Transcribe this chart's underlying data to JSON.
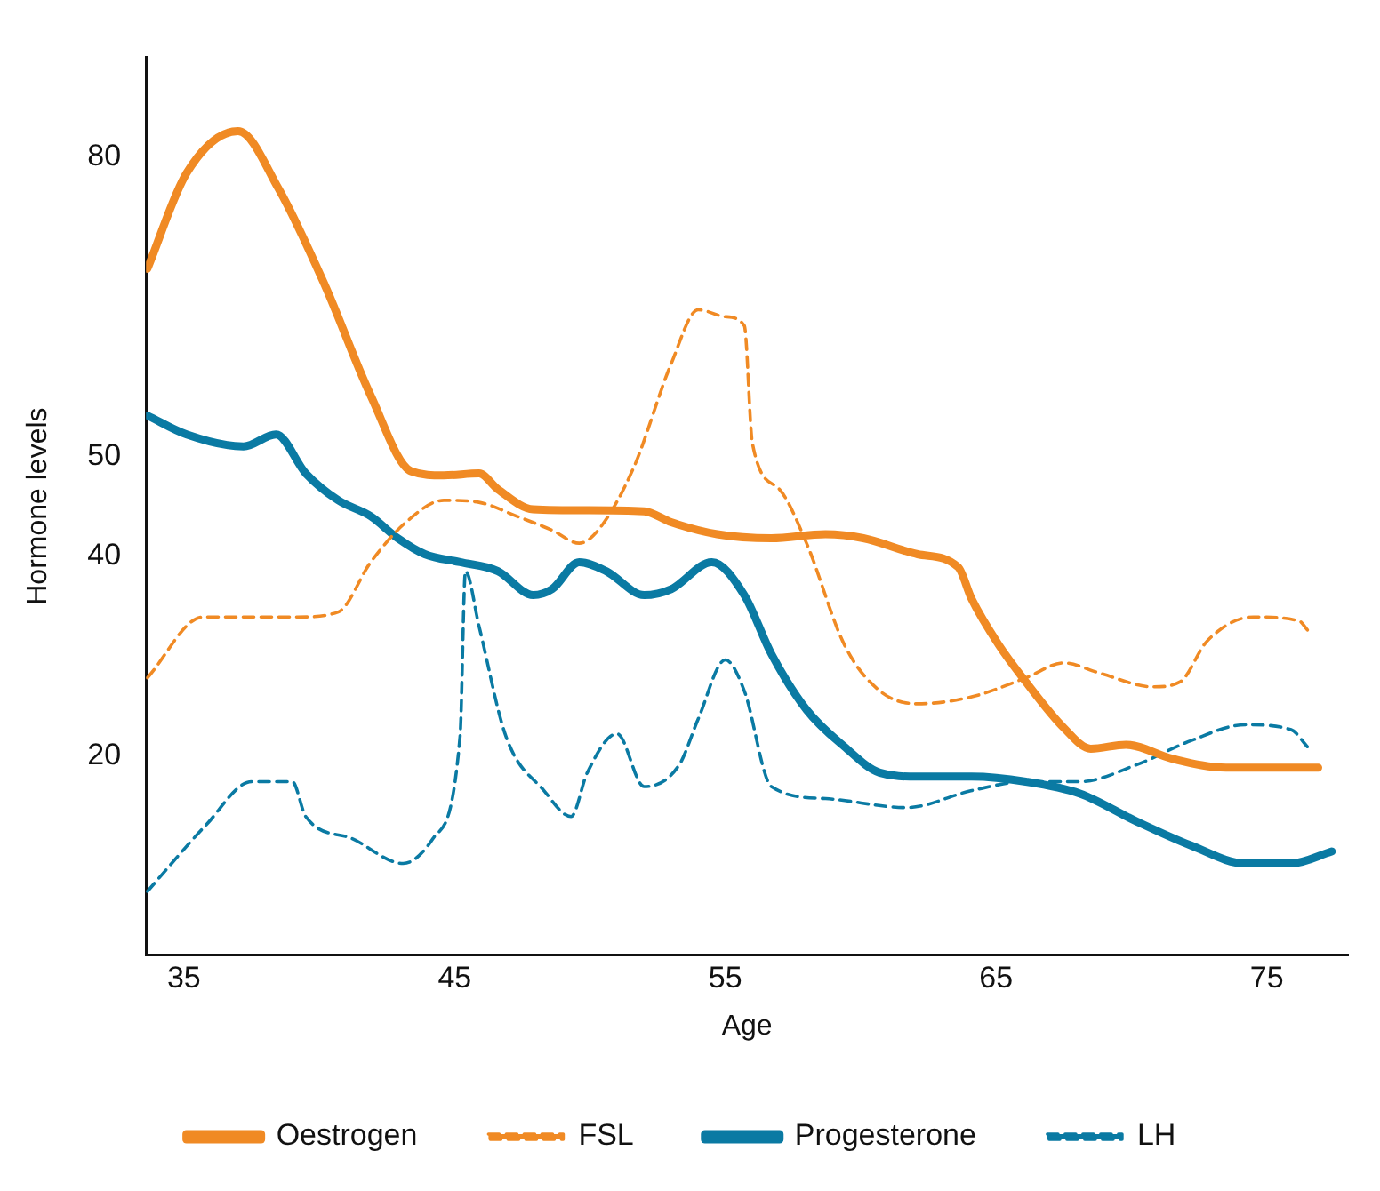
{
  "chart_data": {
    "type": "line",
    "xlabel": "Age",
    "ylabel": "Hormone levels",
    "xlim": [
      33.6,
      78
    ],
    "xticks": [
      35,
      45,
      55,
      65,
      75
    ],
    "ylim": [
      0,
      90
    ],
    "yticks": [
      20,
      40,
      50,
      80
    ],
    "grid": false,
    "legend": "bottom",
    "marker": "none",
    "series": [
      {
        "name": "Oestrogen",
        "color": "#f08a24",
        "line_style": "solid",
        "x": [
          33.65,
          35.1,
          37.0,
          38.5,
          40.2,
          41.9,
          43.4,
          44.6,
          45.9,
          46.6,
          47.9,
          49.9,
          52.0,
          53.0,
          54.7,
          56.7,
          58.7,
          60.1,
          62.1,
          63.6,
          64.1,
          65.1,
          66.1,
          67.5,
          68.5,
          69.8,
          71.5,
          73.5,
          76.9
        ],
        "values": [
          68.8,
          78.4,
          82.6,
          76.8,
          67.2,
          56.1,
          48.5,
          48.1,
          48.3,
          46.7,
          44.7,
          44.6,
          44.5,
          43.4,
          42.2,
          41.8,
          42.2,
          41.8,
          40.2,
          38.9,
          35.7,
          31.1,
          27.4,
          22.8,
          20.7,
          21.1,
          19.7,
          18.8,
          18.8
        ]
      },
      {
        "name": "FSL",
        "color": "#f08a24",
        "line_style": "dashed",
        "x": [
          33.65,
          35.7,
          37.5,
          39.2,
          40.7,
          41.9,
          43.2,
          44.6,
          45.9,
          47.3,
          48.6,
          49.6,
          50.3,
          51.6,
          53.0,
          54.0,
          55.0,
          55.7,
          56.0,
          57.0,
          58.0,
          59.4,
          60.7,
          62.1,
          64.1,
          66.1,
          67.5,
          68.8,
          70.8,
          71.8,
          72.8,
          74.5,
          76.2,
          76.5
        ],
        "values": [
          27.8,
          33.9,
          33.9,
          33.9,
          34.4,
          39.4,
          43.4,
          45.6,
          45.4,
          44.0,
          42.6,
          41.3,
          42.6,
          48.8,
          59.3,
          64.7,
          64.0,
          63.1,
          51.3,
          46.7,
          41.3,
          31.1,
          26.5,
          25.2,
          25.9,
          27.8,
          29.3,
          28.3,
          26.9,
          27.4,
          31.5,
          33.9,
          33.5,
          32.6
        ]
      },
      {
        "name": "Progesterone",
        "color": "#0a7aa3",
        "line_style": "solid",
        "x": [
          33.65,
          35.1,
          37.2,
          38.4,
          39.5,
          40.7,
          41.9,
          42.9,
          43.9,
          45.2,
          46.6,
          47.9,
          48.6,
          49.6,
          50.6,
          52.0,
          53.0,
          54.5,
          55.7,
          56.7,
          58.0,
          59.4,
          60.7,
          62.1,
          64.1,
          66.1,
          68.1,
          70.2,
          72.2,
          74.2,
          75.9,
          77.4
        ],
        "values": [
          54.1,
          52.2,
          51.0,
          52.2,
          48.3,
          45.6,
          44.0,
          41.8,
          40.2,
          39.4,
          38.5,
          36.1,
          36.7,
          39.4,
          38.5,
          36.1,
          36.7,
          39.4,
          36.1,
          30.2,
          24.6,
          20.9,
          18.3,
          17.9,
          17.9,
          17.4,
          16.2,
          13.4,
          11.0,
          9.2,
          9.2,
          10.4
        ]
      },
      {
        "name": "LH",
        "color": "#0a7aa3",
        "line_style": "dashed",
        "x": [
          33.65,
          35.8,
          37.5,
          39.0,
          39.5,
          41.2,
          43.1,
          44.2,
          45.2,
          45.4,
          45.9,
          46.9,
          48.3,
          49.3,
          49.9,
          51.0,
          52.0,
          53.3,
          54.0,
          55.0,
          55.7,
          56.7,
          58.7,
          61.7,
          64.1,
          66.1,
          68.1,
          70.2,
          72.2,
          74.2,
          75.9,
          76.5
        ],
        "values": [
          6.4,
          13.0,
          17.4,
          17.4,
          13.9,
          11.7,
          9.2,
          11.7,
          21.9,
          38.5,
          33.0,
          21.9,
          16.5,
          13.9,
          18.3,
          22.2,
          16.9,
          19.1,
          23.7,
          29.6,
          26.5,
          16.9,
          15.7,
          14.8,
          16.5,
          17.4,
          17.4,
          19.1,
          21.5,
          23.1,
          22.6,
          20.9
        ]
      }
    ]
  }
}
